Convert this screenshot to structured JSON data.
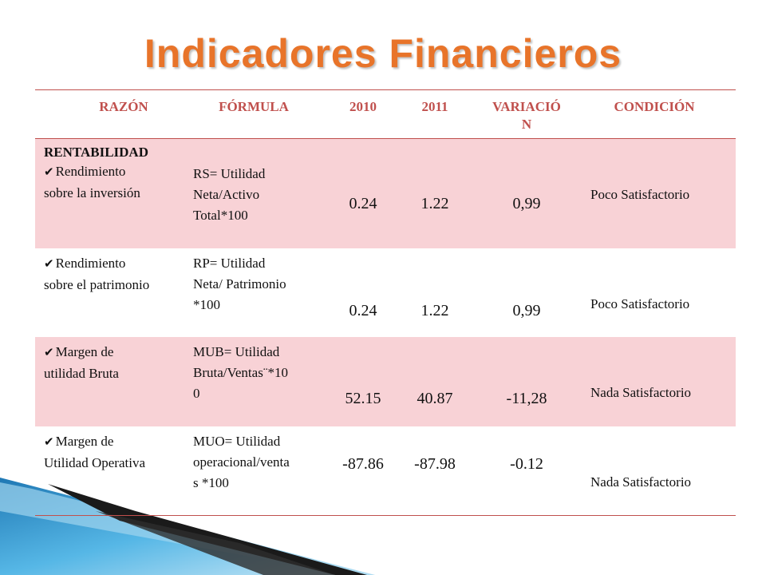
{
  "title": "Indicadores Financieros",
  "headers": {
    "razon": "RAZÓN",
    "formula": "FÓRMULA",
    "y2010": "2010",
    "y2011": "2011",
    "variacion_1": "VARIACIÓ",
    "variacion_2": "N",
    "condicion": "CONDICIÓN"
  },
  "section": "RENTABILIDAD",
  "check_glyph": "✔",
  "rows": [
    {
      "name_1": "Rendimiento",
      "name_2": "sobre la inversión",
      "formula_1": "RS= Utilidad",
      "formula_2": "Neta/Activo",
      "formula_3": "Total*100",
      "v2010": "0.24",
      "v2011": "1.22",
      "variacion": "0,99",
      "condicion": "Poco Satisfactorio"
    },
    {
      "name_1": "Rendimiento",
      "name_2": "sobre el patrimonio",
      "formula_1": "RP= Utilidad",
      "formula_2": "Neta/ Patrimonio",
      "formula_3": "*100",
      "v2010": "0.24",
      "v2011": "1.22",
      "variacion": "0,99",
      "condicion": "Poco Satisfactorio"
    },
    {
      "name_1": "Margen de",
      "name_2": "utilidad Bruta",
      "formula_1": "MUB= Utilidad",
      "formula_2": "Bruta/Ventas¨*10",
      "formula_3": "0",
      "v2010": "52.15",
      "v2011": "40.87",
      "variacion": "-11,28",
      "condicion": "Nada Satisfactorio"
    },
    {
      "name_1": "Margen de",
      "name_2": "Utilidad Operativa",
      "formula_1": "MUO= Utilidad",
      "formula_2": "operacional/venta",
      "formula_3": "s *100",
      "v2010": "-87.86",
      "v2011": "-87.98",
      "variacion": "-0.12",
      "condicion": "Nada Satisfactorio"
    }
  ],
  "colors": {
    "title": "#e8742a",
    "header": "#c0504d",
    "band": "#f8d2d6",
    "decor_blue": "#2f9bd3"
  }
}
